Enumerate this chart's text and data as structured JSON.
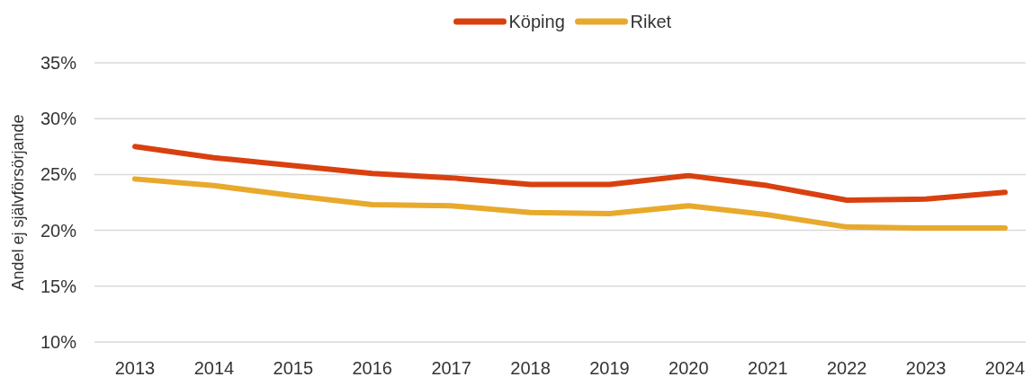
{
  "chart_data": {
    "type": "line",
    "ylabel": "Andel ej självförsörjande",
    "categories": [
      "2013",
      "2014",
      "2015",
      "2016",
      "2017",
      "2018",
      "2019",
      "2020",
      "2021",
      "2022",
      "2023",
      "2024"
    ],
    "series": [
      {
        "name": "Köping",
        "color": "#d9400f",
        "values": [
          27.5,
          26.5,
          25.8,
          25.1,
          24.7,
          24.1,
          24.1,
          24.9,
          24.0,
          22.7,
          22.8,
          23.4
        ]
      },
      {
        "name": "Riket",
        "color": "#e8a92c",
        "values": [
          24.6,
          24.0,
          23.1,
          22.3,
          22.2,
          21.6,
          21.5,
          22.2,
          21.4,
          20.3,
          20.2,
          20.2
        ]
      }
    ],
    "ylim": [
      10,
      35
    ],
    "yticks": [
      {
        "value": 10,
        "label": "10%"
      },
      {
        "value": 15,
        "label": "15%"
      },
      {
        "value": 20,
        "label": "20%"
      },
      {
        "value": 25,
        "label": "25%"
      },
      {
        "value": 30,
        "label": "30%"
      },
      {
        "value": 35,
        "label": "35%"
      }
    ],
    "grid": "y",
    "legend": "top",
    "marker": "none",
    "line_style": "solid"
  }
}
